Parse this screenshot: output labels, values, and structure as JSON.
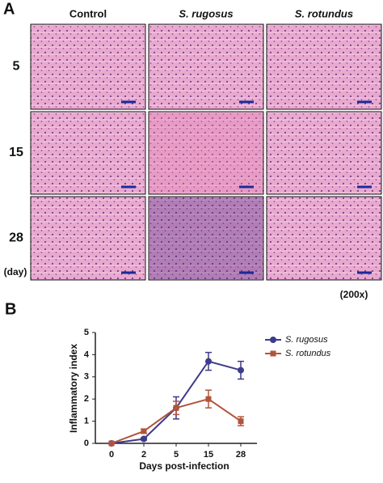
{
  "panel_a": {
    "label": "A",
    "columns": [
      "Control",
      "S. rugosus",
      "S. rotundus"
    ],
    "rows": [
      "5",
      "15",
      "28"
    ],
    "unit": "(day)",
    "magnification": "(200x)"
  },
  "panel_b": {
    "label": "B"
  },
  "chart_data": {
    "type": "line",
    "x_label": "Days post-infection",
    "y_label": "Inflammatory index",
    "categories": [
      "0",
      "2",
      "5",
      "15",
      "28"
    ],
    "series": [
      {
        "name": "S. rugosus",
        "color": "#3e3a8c",
        "marker": "circle",
        "values": [
          0,
          0.2,
          1.6,
          3.7,
          3.3
        ],
        "errors": [
          0,
          0.05,
          0.5,
          0.4,
          0.4
        ]
      },
      {
        "name": "S. rotundus",
        "color": "#b0553a",
        "marker": "square",
        "values": [
          0,
          0.55,
          1.6,
          2.0,
          1.0
        ],
        "errors": [
          0,
          0.1,
          0.3,
          0.4,
          0.2
        ]
      }
    ],
    "ylim": [
      0,
      5
    ],
    "yticks": [
      0,
      1,
      2,
      3,
      4,
      5
    ],
    "grid": false,
    "legend": "top-right"
  }
}
